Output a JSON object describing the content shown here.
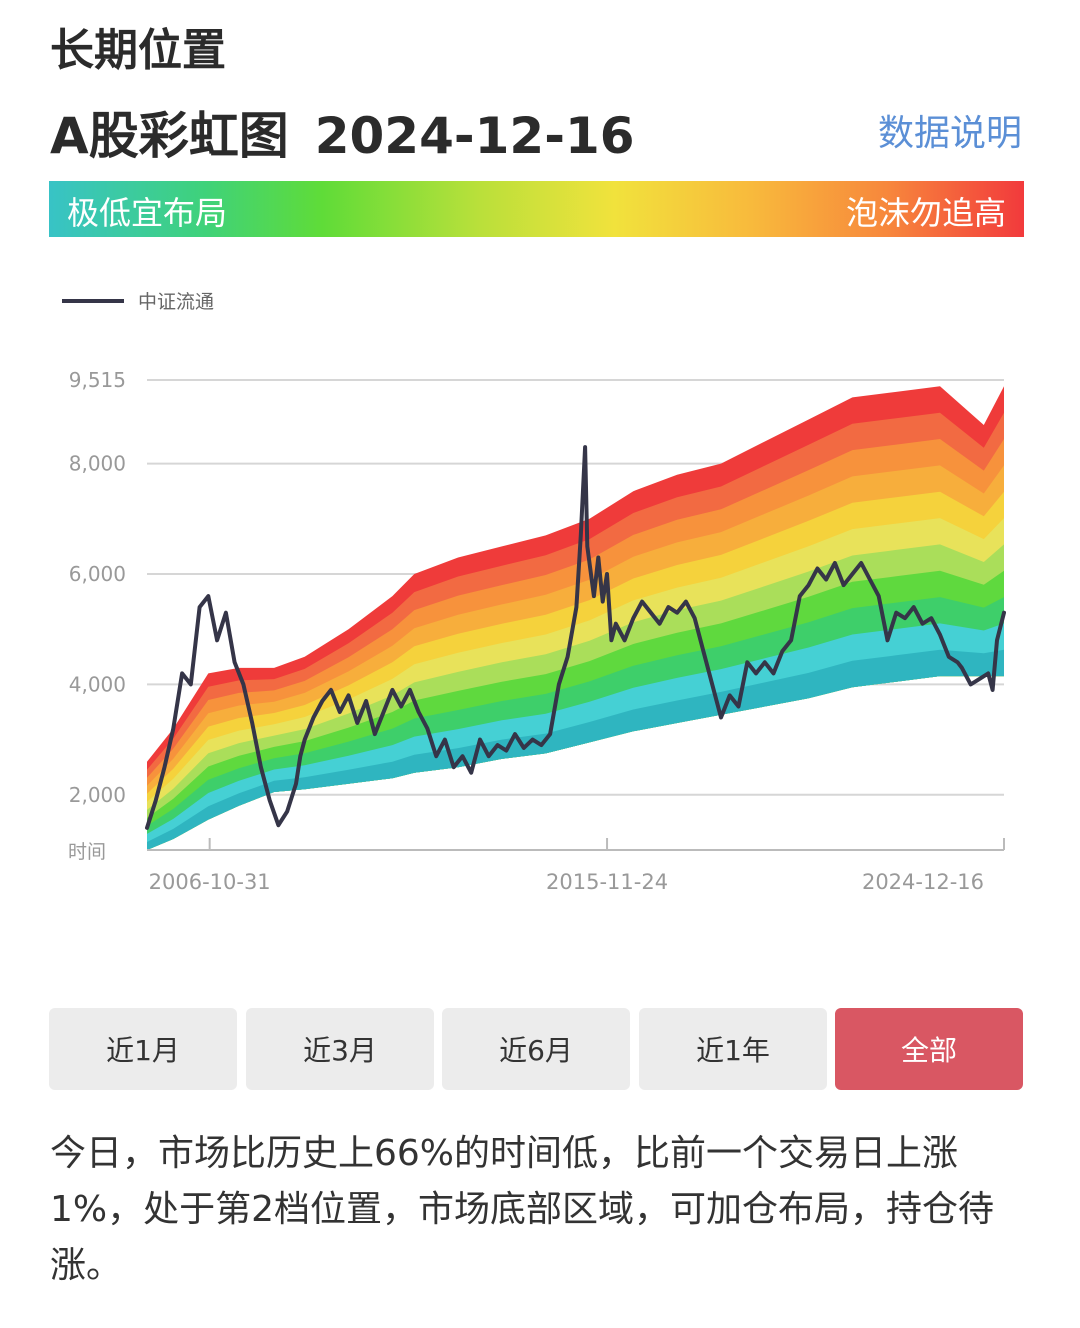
{
  "header": {
    "title_line1": "长期位置",
    "title_line2": "A股彩虹图",
    "date": "2024-12-16",
    "explain_link": "数据说明"
  },
  "rainbow_bar": {
    "low_label": "极低宜布局",
    "high_label": "泡沫勿追高"
  },
  "colors": {
    "line": "#353548",
    "bands": [
      "#2fb5c0",
      "#45d0d4",
      "#3ecf6a",
      "#5fd93e",
      "#aade5a",
      "#e8e25a",
      "#f5d23c",
      "#f7ae3c",
      "#f7923c",
      "#f26a42",
      "#ef3b3a"
    ],
    "active_button": "#d95763",
    "link": "#5b8fd6"
  },
  "chart_data": {
    "type": "line",
    "legend": "中证流通",
    "legend_position": "top-left",
    "y_ticks": [
      "9,515",
      "8,000",
      "6,000",
      "4,000",
      "2,000"
    ],
    "y_tick_values": [
      9515,
      8000,
      6000,
      4000,
      2000
    ],
    "ylim": [
      1000,
      9515
    ],
    "xlim": [
      2005.4,
      2024.96
    ],
    "x_axis_label": "时间",
    "x_tick_labels": [
      "2006-10-31",
      "2015-11-24",
      "2024-12-16"
    ],
    "x_tick_values": [
      2006.83,
      2015.9,
      2024.96
    ],
    "grid": true,
    "series": [
      {
        "name": "中证流通",
        "x": [
          2005.4,
          2005.6,
          2005.8,
          2006.0,
          2006.2,
          2006.4,
          2006.6,
          2006.8,
          2007.0,
          2007.2,
          2007.4,
          2007.6,
          2007.8,
          2008.0,
          2008.2,
          2008.4,
          2008.6,
          2008.8,
          2008.9,
          2009.0,
          2009.2,
          2009.4,
          2009.6,
          2009.8,
          2010.0,
          2010.2,
          2010.4,
          2010.6,
          2010.8,
          2011.0,
          2011.2,
          2011.4,
          2011.6,
          2011.8,
          2012.0,
          2012.2,
          2012.4,
          2012.6,
          2012.8,
          2013.0,
          2013.2,
          2013.4,
          2013.6,
          2013.8,
          2014.0,
          2014.2,
          2014.4,
          2014.6,
          2014.8,
          2015.0,
          2015.2,
          2015.3,
          2015.4,
          2015.45,
          2015.6,
          2015.7,
          2015.8,
          2015.9,
          2016.0,
          2016.1,
          2016.3,
          2016.5,
          2016.7,
          2016.9,
          2017.1,
          2017.3,
          2017.5,
          2017.7,
          2017.9,
          2018.1,
          2018.3,
          2018.5,
          2018.7,
          2018.9,
          2019.1,
          2019.3,
          2019.5,
          2019.7,
          2019.9,
          2020.1,
          2020.3,
          2020.5,
          2020.7,
          2020.9,
          2021.1,
          2021.3,
          2021.5,
          2021.7,
          2021.9,
          2022.1,
          2022.3,
          2022.5,
          2022.7,
          2022.9,
          2023.1,
          2023.3,
          2023.5,
          2023.7,
          2023.9,
          2024.0,
          2024.2,
          2024.4,
          2024.6,
          2024.7,
          2024.8,
          2024.96
        ],
        "values": [
          1400,
          1900,
          2500,
          3200,
          4200,
          4000,
          5400,
          5600,
          4800,
          5300,
          4400,
          4000,
          3300,
          2500,
          1900,
          1450,
          1700,
          2200,
          2700,
          3000,
          3400,
          3700,
          3900,
          3500,
          3800,
          3300,
          3700,
          3100,
          3500,
          3900,
          3600,
          3900,
          3500,
          3200,
          2700,
          3000,
          2500,
          2700,
          2400,
          3000,
          2700,
          2900,
          2800,
          3100,
          2850,
          3000,
          2900,
          3100,
          4000,
          4500,
          5400,
          6700,
          8300,
          6500,
          5600,
          6300,
          5500,
          6000,
          4800,
          5100,
          4800,
          5200,
          5500,
          5300,
          5100,
          5400,
          5300,
          5500,
          5200,
          4600,
          4000,
          3400,
          3800,
          3600,
          4400,
          4200,
          4400,
          4200,
          4600,
          4800,
          5600,
          5800,
          6100,
          5900,
          6200,
          5800,
          6000,
          6200,
          5900,
          5600,
          4800,
          5300,
          5200,
          5400,
          5100,
          5200,
          4900,
          4500,
          4400,
          4300,
          4000,
          4100,
          4200,
          3900,
          4800,
          5300
        ]
      }
    ],
    "bands": {
      "x": [
        2005.4,
        2006.0,
        2006.8,
        2007.5,
        2008.3,
        2009.0,
        2010.0,
        2011.0,
        2011.5,
        2012.5,
        2013.5,
        2014.5,
        2015.5,
        2016.5,
        2017.5,
        2018.5,
        2019.5,
        2020.5,
        2021.5,
        2022.5,
        2023.5,
        2024.5,
        2024.96
      ],
      "lower": [
        1000,
        1200,
        1550,
        1800,
        2050,
        2100,
        2200,
        2300,
        2400,
        2500,
        2650,
        2750,
        2950,
        3150,
        3300,
        3450,
        3600,
        3750,
        3950,
        4050,
        4150,
        4150,
        4150
      ],
      "upper": [
        2600,
        3200,
        4200,
        4300,
        4300,
        4500,
        5000,
        5600,
        6000,
        6300,
        6500,
        6700,
        7000,
        7500,
        7800,
        8000,
        8400,
        8800,
        9200,
        9300,
        9400,
        8700,
        9400
      ]
    }
  },
  "range_buttons": [
    {
      "label": "近1月",
      "active": false
    },
    {
      "label": "近3月",
      "active": false
    },
    {
      "label": "近6月",
      "active": false
    },
    {
      "label": "近1年",
      "active": false
    },
    {
      "label": "全部",
      "active": true
    }
  ],
  "summary": "今日，市场比历史上66%的时间低，比前一个交易日上涨1%，处于第2档位置，市场底部区域，可加仓布局，持仓待涨。"
}
